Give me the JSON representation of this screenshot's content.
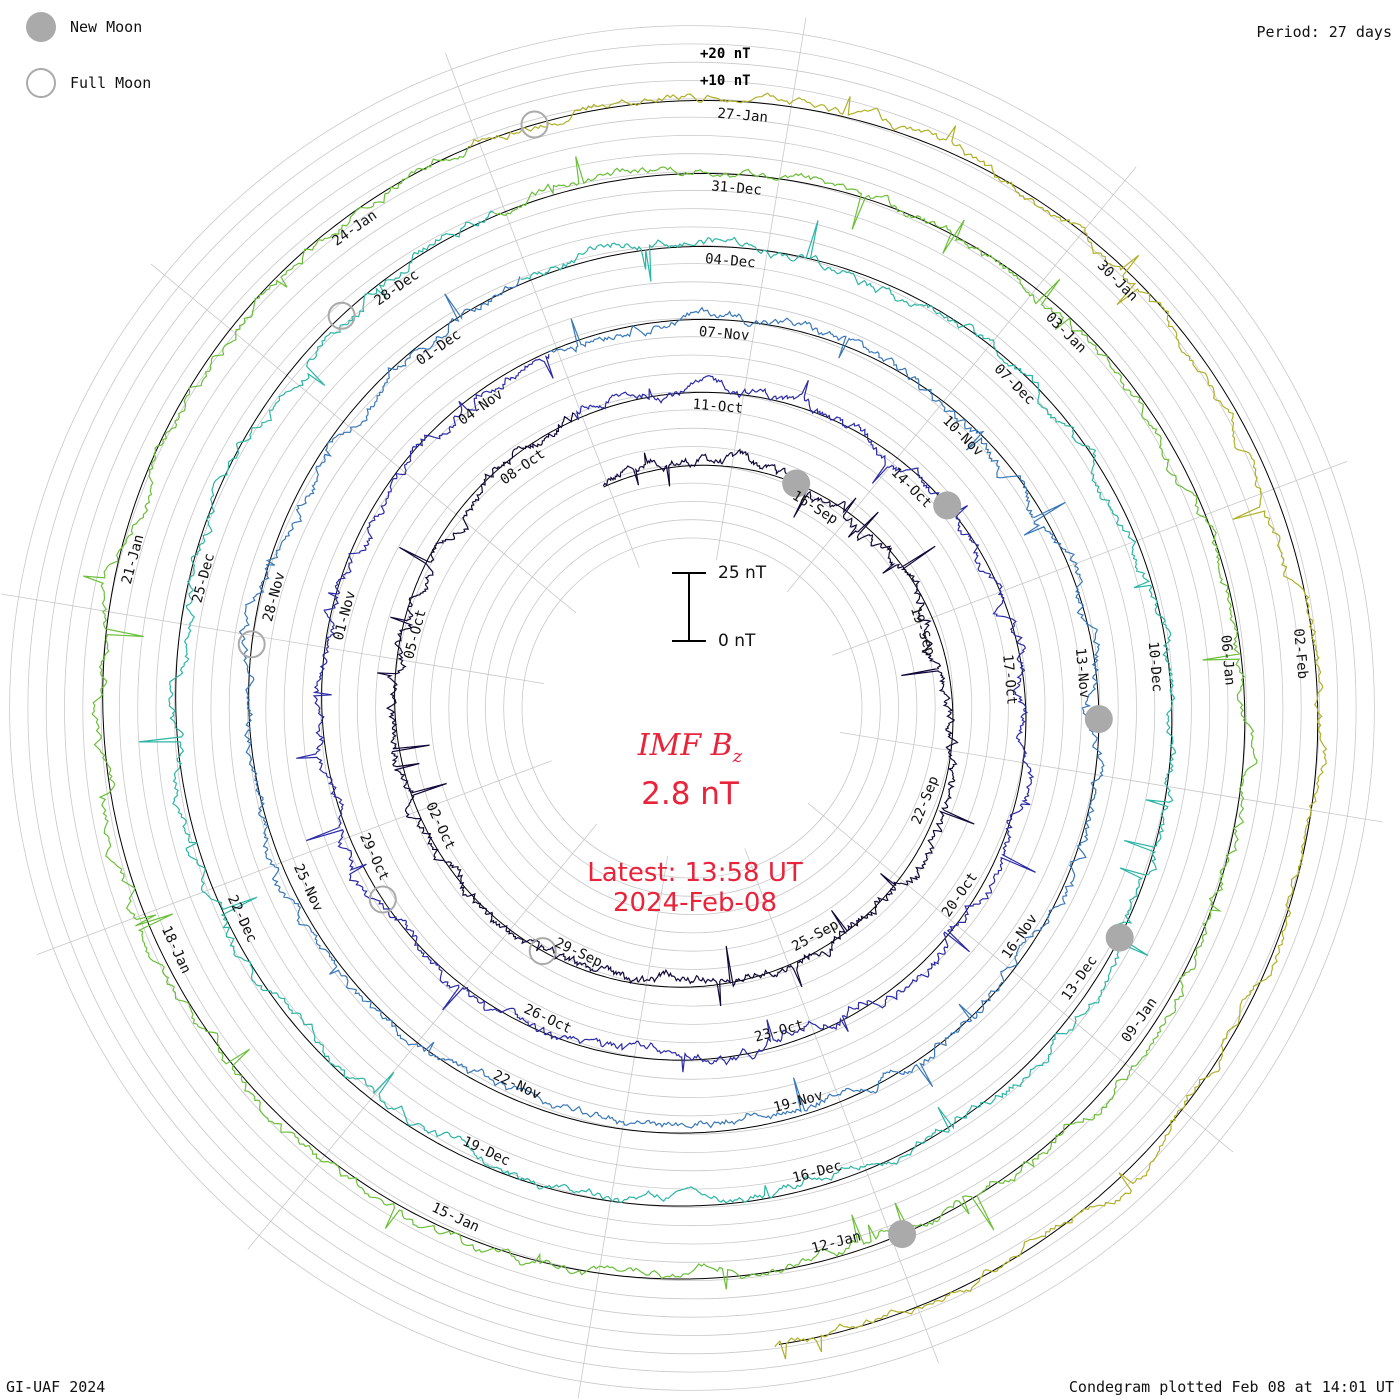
{
  "header": {
    "period": "Period: 27 days"
  },
  "footer": {
    "credit": "GI-UAF 2024",
    "plotted": "Condegram plotted Feb 08 at 14:01 UT"
  },
  "legend": {
    "new_moon": "New Moon",
    "full_moon": "Full Moon",
    "new_moon_color": "#aaaaaa",
    "full_moon_color": "#aaaaaa"
  },
  "center": {
    "title_main": "IMF B",
    "title_sub": "z",
    "value": "2.8 nT",
    "latest_label": "Latest: 13:58 UT",
    "latest_date": "2024-Feb-08",
    "text_color": "#e8233a"
  },
  "scale": {
    "top_label": "25 nT",
    "bottom_label": "0 nT",
    "ring_labels": [
      "+20 nT",
      "+10 nT"
    ]
  },
  "chart_data": {
    "type": "line",
    "layout": "spiral condegram",
    "period_days": 27,
    "quantity": "IMF Bz",
    "units": "nT",
    "start_date": "2023-09-12",
    "end_date": "2024-02-08",
    "series_colors": [
      "#120838",
      "#2b2ba8",
      "#3a78b8",
      "#2db5a5",
      "#6cbf3a",
      "#b0b028",
      "#c27a1a",
      "#c0301a"
    ],
    "date_ticks": [
      {
        "label": "16-Sep",
        "date": "2023-09-16"
      },
      {
        "label": "19-Sep",
        "date": "2023-09-19"
      },
      {
        "label": "22-Sep",
        "date": "2023-09-22"
      },
      {
        "label": "25-Sep",
        "date": "2023-09-25"
      },
      {
        "label": "29-Sep",
        "date": "2023-09-29"
      },
      {
        "label": "02-Oct",
        "date": "2023-10-02"
      },
      {
        "label": "05-Oct",
        "date": "2023-10-05"
      },
      {
        "label": "08-Oct",
        "date": "2023-10-08"
      },
      {
        "label": "11-Oct",
        "date": "2023-10-11"
      },
      {
        "label": "14-Oct",
        "date": "2023-10-14"
      },
      {
        "label": "17-Oct",
        "date": "2023-10-17"
      },
      {
        "label": "20-Oct",
        "date": "2023-10-20"
      },
      {
        "label": "23-Oct",
        "date": "2023-10-23"
      },
      {
        "label": "26-Oct",
        "date": "2023-10-26"
      },
      {
        "label": "29-Oct",
        "date": "2023-10-29"
      },
      {
        "label": "01-Nov",
        "date": "2023-11-01"
      },
      {
        "label": "04-Nov",
        "date": "2023-11-04"
      },
      {
        "label": "07-Nov",
        "date": "2023-11-07"
      },
      {
        "label": "10-Nov",
        "date": "2023-11-10"
      },
      {
        "label": "13-Nov",
        "date": "2023-11-13"
      },
      {
        "label": "16-Nov",
        "date": "2023-11-16"
      },
      {
        "label": "19-Nov",
        "date": "2023-11-19"
      },
      {
        "label": "22-Nov",
        "date": "2023-11-22"
      },
      {
        "label": "25-Nov",
        "date": "2023-11-25"
      },
      {
        "label": "28-Nov",
        "date": "2023-11-28"
      },
      {
        "label": "01-Dec",
        "date": "2023-12-01"
      },
      {
        "label": "04-Dec",
        "date": "2023-12-04"
      },
      {
        "label": "07-Dec",
        "date": "2023-12-07"
      },
      {
        "label": "10-Dec",
        "date": "2023-12-10"
      },
      {
        "label": "13-Dec",
        "date": "2023-12-13"
      },
      {
        "label": "16-Dec",
        "date": "2023-12-16"
      },
      {
        "label": "19-Dec",
        "date": "2023-12-19"
      },
      {
        "label": "22-Dec",
        "date": "2023-12-22"
      },
      {
        "label": "25-Dec",
        "date": "2023-12-25"
      },
      {
        "label": "28-Dec",
        "date": "2023-12-28"
      },
      {
        "label": "31-Dec",
        "date": "2023-12-31"
      },
      {
        "label": "03-Jan",
        "date": "2024-01-03"
      },
      {
        "label": "06-Jan",
        "date": "2024-01-06"
      },
      {
        "label": "09-Jan",
        "date": "2024-01-09"
      },
      {
        "label": "12-Jan",
        "date": "2024-01-12"
      },
      {
        "label": "15-Jan",
        "date": "2024-01-15"
      },
      {
        "label": "18-Jan",
        "date": "2024-01-18"
      },
      {
        "label": "21-Jan",
        "date": "2024-01-21"
      },
      {
        "label": "24-Jan",
        "date": "2024-01-24"
      },
      {
        "label": "27-Jan",
        "date": "2024-01-27"
      },
      {
        "label": "30-Jan",
        "date": "2024-01-30"
      },
      {
        "label": "02-Feb",
        "date": "2024-02-02"
      }
    ],
    "new_moons": [
      "2023-09-15",
      "2023-10-14",
      "2023-11-13",
      "2023-12-12",
      "2024-01-11"
    ],
    "full_moons": [
      "2023-09-29",
      "2023-10-28",
      "2023-11-27",
      "2023-12-27",
      "2024-01-25"
    ],
    "latest_value_nT": 2.8
  }
}
